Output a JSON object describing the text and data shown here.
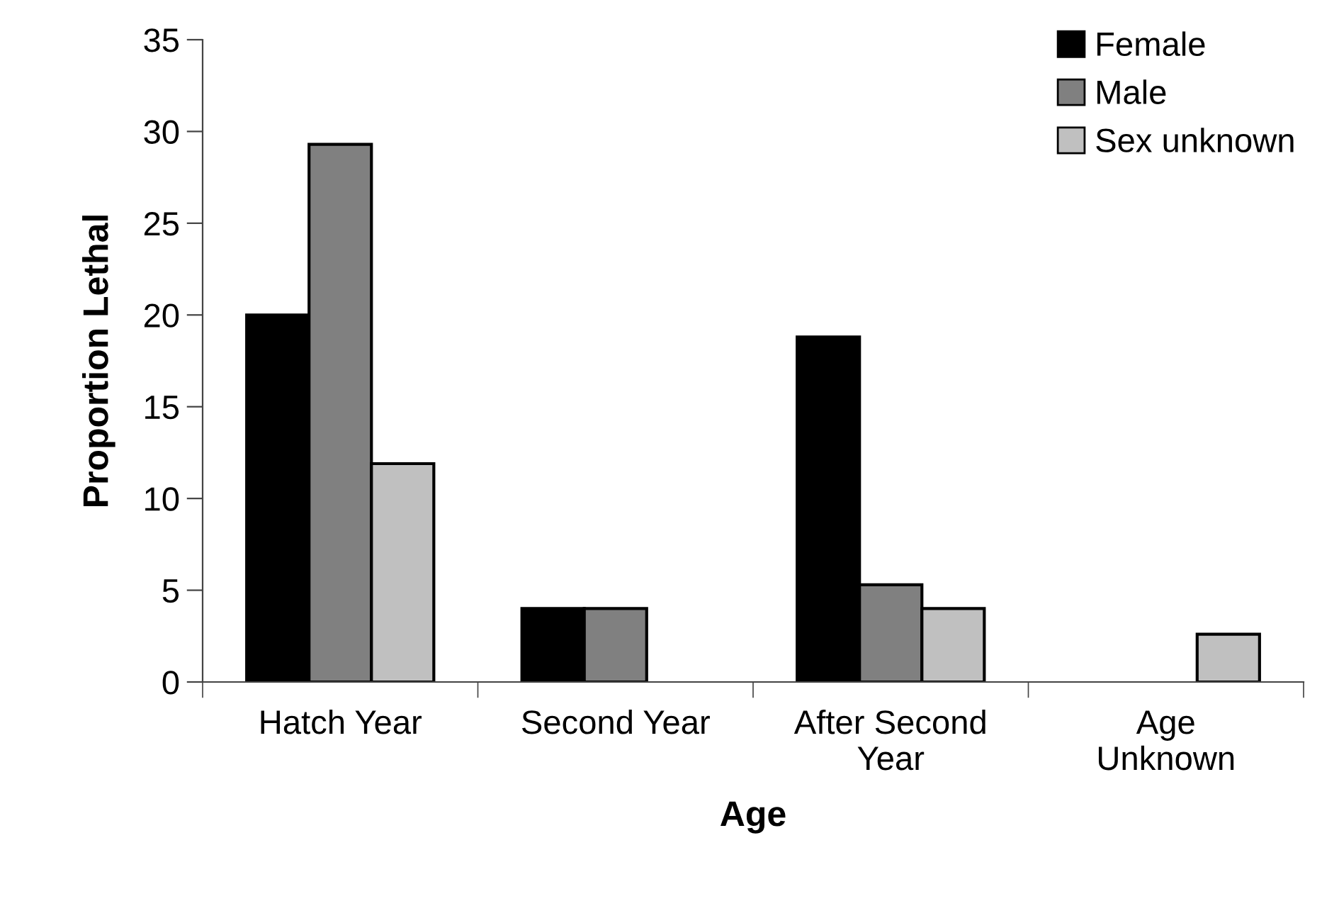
{
  "chart_data": {
    "type": "bar",
    "xlabel": "Age",
    "ylabel": "Proportion Lethal",
    "categories": [
      "Hatch Year",
      "Second Year",
      "After Second\nYear",
      "Age\nUnknown"
    ],
    "series": [
      {
        "name": "Female",
        "color": "#000000",
        "values": [
          20,
          4.0,
          18.8,
          null
        ]
      },
      {
        "name": "Male",
        "color": "#808080",
        "values": [
          29.3,
          4.0,
          5.3,
          null
        ]
      },
      {
        "name": "Sex unknown",
        "color": "#c0c0c0",
        "values": [
          11.9,
          null,
          4.0,
          2.6
        ]
      }
    ],
    "ylim": [
      0,
      35
    ],
    "yticks": [
      0,
      5,
      10,
      15,
      20,
      25,
      30,
      35
    ],
    "grid": false,
    "legend": "top right"
  }
}
